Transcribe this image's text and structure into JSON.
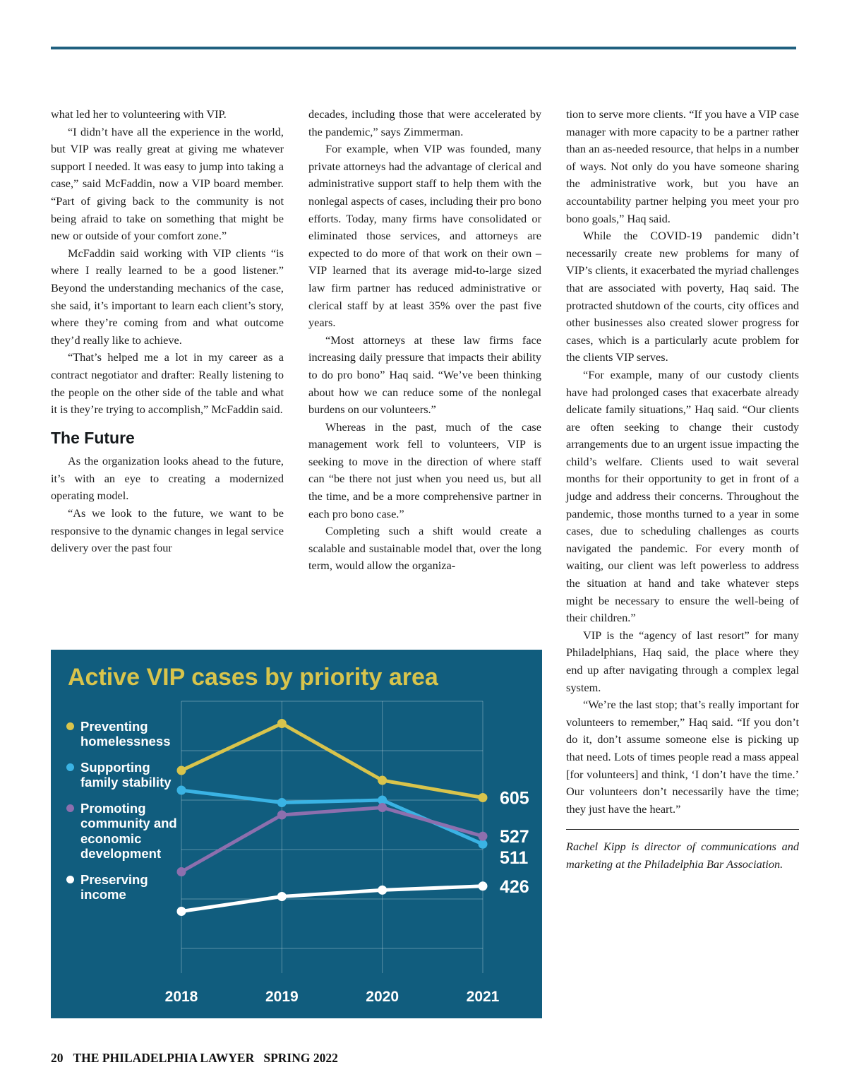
{
  "article": {
    "col1": {
      "paragraphs": [
        "what led her to volunteering with VIP.",
        "“I didn’t have all the experience in the world, but VIP was really great at giving me whatever support I needed. It was easy to jump into taking a case,” said McFaddin, now a VIP board member. “Part of giving back to the community is not being afraid to take on something that might be new or outside of your comfort zone.”",
        "McFaddin said working with VIP clients “is where I really learned to be a good listener.” Beyond the understanding mechanics of the case, she said, it’s important to learn each client’s story, where they’re coming from and what outcome they’d really like to achieve.",
        "“That’s helped me a lot in my career as a contract negotiator and drafter: Really listening to the people on the other side of the table and what it is they’re trying to accomplish,” McFaddin said."
      ],
      "heading": "The Future",
      "paragraphs_after": [
        "As the organization looks ahead to the future, it’s with an eye to creating a modernized operating model.",
        "“As we look to the future, we want to be responsive to the dynamic changes in legal service delivery over the past four"
      ]
    },
    "col2": {
      "paragraphs": [
        "decades, including those that were accelerated by the pandemic,” says Zimmerman.",
        "For example, when VIP was founded, many private attorneys had the advantage of clerical and administrative support staff to help them with the nonlegal aspects of cases, including their pro bono efforts. Today, many firms have consolidated or eliminated those services, and attorneys are expected to do more of that work on their own – VIP learned that its average mid-to-large sized law firm partner has reduced administrative or clerical staff by at least 35% over the past five years.",
        "“Most attorneys at these law firms face increasing daily pressure that impacts their ability to do pro bono” Haq said. “We’ve been thinking about how we can reduce some of the nonlegal burdens on our volunteers.”",
        "Whereas in the past, much of the case management work fell to volunteers, VIP is seeking to move in the direction of where staff can “be there not just when you need us, but all the time, and be a more comprehensive partner in each pro bono case.”",
        "Completing such a shift would create a scalable and sustainable model that, over the long term, would allow the organiza-"
      ]
    },
    "col3": {
      "paragraphs": [
        "tion to serve more clients. “If you have a VIP case manager with more capacity to be a partner rather than an as-needed resource, that helps in a number of ways. Not only do you have someone sharing the administrative work, but you have an accountability partner helping you meet your pro bono goals,” Haq said.",
        "While the COVID-19 pandemic didn’t necessarily create new problems for many of VIP’s clients, it exacerbated the myriad challenges that are associated with poverty, Haq said. The protracted shutdown of the courts, city offices and other businesses also created slower progress for cases, which is a particularly acute problem for the clients VIP serves.",
        "“For example, many of our custody clients have had prolonged cases that exacerbate already delicate family situations,” Haq said.  “Our clients are often seeking to change their custody arrangements due to an urgent issue impacting the child’s welfare. Clients used to wait several months for their opportunity to get in front of a judge and address their concerns. Throughout the pandemic, those months turned to a year in some cases, due to scheduling challenges as courts navigated the pandemic. For every month of waiting, our client was left powerless to address the situation at hand and take whatever steps might be necessary to ensure the well-being of their children.”",
        "VIP is the “agency of last resort” for many Philadelphians, Haq said, the place where they end up after navigating through a complex legal system.",
        "“We’re the last stop; that’s really important for volunteers to remember,” Haq said. “If you don’t do it, don’t assume someone else is picking up that need. Lots of times people read a mass appeal [for volunteers] and think, ‘I don’t have the time.’ Our volunteers don’t necessarily have the time; they just have the heart.”"
      ],
      "bio": "Rachel Kipp is director of communications and marketing at the Philadelphia Bar Association."
    }
  },
  "chart_data": {
    "type": "line",
    "title": "Active VIP cases by priority area",
    "x_categories": [
      "2018",
      "2019",
      "2020",
      "2021"
    ],
    "series": [
      {
        "name": "Preventing homelessness",
        "color": "#d8c44c",
        "values": [
          660,
          755,
          640,
          605
        ],
        "end_label": "605"
      },
      {
        "name": "Supporting family stability",
        "color": "#3ab3e4",
        "values": [
          620,
          595,
          600,
          511
        ],
        "end_label": "511"
      },
      {
        "name": "Promoting community and economic development",
        "color": "#8d6fae",
        "values": [
          455,
          570,
          585,
          527
        ],
        "end_label": "527"
      },
      {
        "name": "Preserving income",
        "color": "#ffffff",
        "values": [
          375,
          405,
          418,
          426
        ],
        "end_label": "426"
      }
    ],
    "ylim": [
      250,
      800
    ],
    "grid": true,
    "legend_position": "left",
    "background_color": "#115d7e",
    "title_color": "#d8c44c"
  },
  "footer": {
    "page_number": "20",
    "publication": "THE PHILADELPHIA LAWYER",
    "issue": "SPRING 2022"
  }
}
